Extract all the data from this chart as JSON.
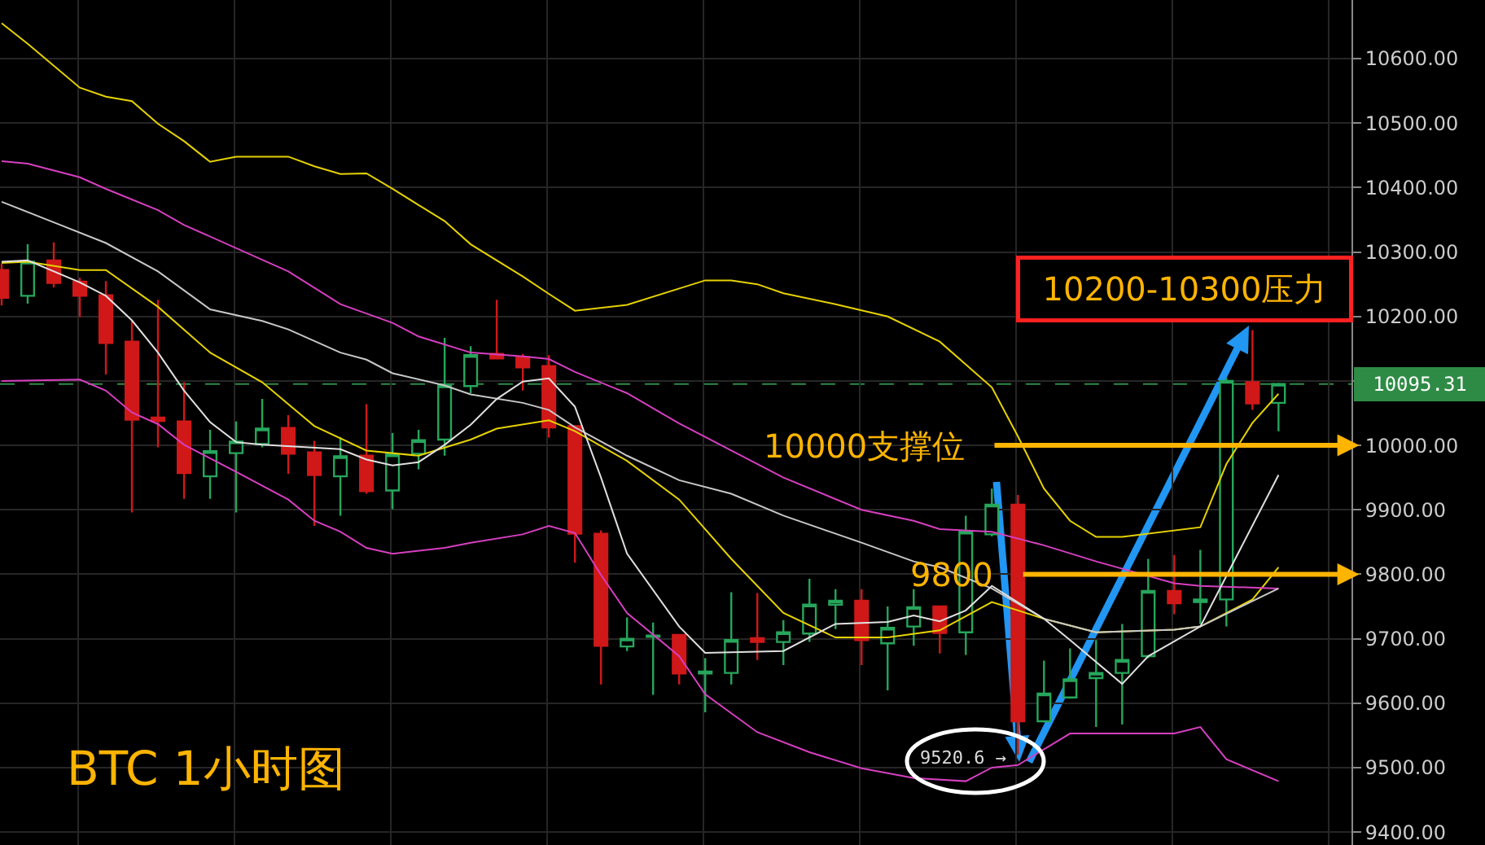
{
  "chart_data": {
    "type": "candlestick",
    "title": "BTC 1小时图",
    "categories": [
      null,
      null,
      null,
      null,
      null,
      null,
      null,
      null,
      null,
      null,
      null,
      null,
      null,
      null,
      null,
      null,
      null,
      null,
      null,
      null,
      null,
      null,
      null,
      null,
      null,
      null,
      null,
      null,
      null,
      null,
      null,
      null,
      null,
      null,
      null,
      null,
      null,
      null,
      null,
      null,
      null,
      null,
      null,
      null,
      null,
      null,
      null,
      null,
      null,
      null
    ],
    "ohlc": [
      [
        10272,
        10282,
        10217,
        10229
      ],
      [
        10232,
        10312,
        10220,
        10285
      ],
      [
        10287,
        10315,
        10245,
        10252
      ],
      [
        10254,
        10260,
        10199,
        10232
      ],
      [
        10233,
        10255,
        10110,
        10159
      ],
      [
        10161,
        10194,
        9896,
        10040
      ],
      [
        10043,
        10226,
        9997,
        10038
      ],
      [
        10037,
        10098,
        9917,
        9957
      ],
      [
        9952,
        10024,
        9917,
        9991
      ],
      [
        9988,
        10037,
        9896,
        10006
      ],
      [
        10002,
        10072,
        9997,
        10026
      ],
      [
        10027,
        10047,
        9956,
        9987
      ],
      [
        9989,
        10007,
        9875,
        9954
      ],
      [
        9952,
        10013,
        9891,
        9983
      ],
      [
        9984,
        10064,
        9925,
        9929
      ],
      [
        9930,
        10019,
        9901,
        9986
      ],
      [
        9987,
        10024,
        9963,
        10008
      ],
      [
        10009,
        10167,
        9984,
        10093
      ],
      [
        10092,
        10154,
        10081,
        10140
      ],
      [
        10142,
        10226,
        10134,
        10135
      ],
      [
        10137,
        10142,
        10085,
        10121
      ],
      [
        10123,
        10140,
        10012,
        10028
      ],
      [
        10030,
        10030,
        9818,
        9863
      ],
      [
        9863,
        9868,
        9629,
        9689
      ],
      [
        9688,
        9733,
        9681,
        9700
      ],
      [
        9703,
        9725,
        9613,
        9705
      ],
      [
        9706,
        9706,
        9629,
        9646
      ],
      [
        9646,
        9670,
        9586,
        9649
      ],
      [
        9647,
        9772,
        9629,
        9698
      ],
      [
        9701,
        9771,
        9667,
        9695
      ],
      [
        9695,
        9729,
        9659,
        9710
      ],
      [
        9708,
        9793,
        9695,
        9753
      ],
      [
        9753,
        9777,
        9715,
        9759
      ],
      [
        9759,
        9777,
        9659,
        9698
      ],
      [
        9693,
        9750,
        9620,
        9717
      ],
      [
        9719,
        9777,
        9689,
        9749
      ],
      [
        9750,
        9750,
        9677,
        9709
      ],
      [
        9710,
        9891,
        9675,
        9866
      ],
      [
        9862,
        9933,
        9859,
        9908
      ],
      [
        9908,
        9923,
        9520.6,
        9572
      ],
      [
        9572,
        9666,
        9570,
        9615
      ],
      [
        9609,
        9685,
        9607,
        9637
      ],
      [
        9639,
        9698,
        9563,
        9647
      ],
      [
        9647,
        9723,
        9567,
        9667
      ],
      [
        9673,
        9824,
        9670,
        9774
      ],
      [
        9774,
        9830,
        9738,
        9755
      ],
      [
        9757,
        9838,
        9723,
        9761
      ],
      [
        9761,
        10105,
        9719,
        10100
      ],
      [
        10098,
        10179,
        10055,
        10065
      ],
      [
        10066,
        10097,
        10022,
        10095.31
      ]
    ],
    "colors": [
      "#d01818",
      "#26a65b",
      "#d01818",
      "#d01818",
      "#d01818",
      "#d01818",
      "#d01818",
      "#d01818",
      "#26a65b",
      "#26a65b",
      "#26a65b",
      "#d01818",
      "#d01818",
      "#26a65b",
      "#d01818",
      "#26a65b",
      "#26a65b",
      "#26a65b",
      "#26a65b",
      "#d01818",
      "#d01818",
      "#d01818",
      "#d01818",
      "#d01818",
      "#26a65b",
      "#26a65b",
      "#d01818",
      "#26a65b",
      "#26a65b",
      "#d01818",
      "#26a65b",
      "#26a65b",
      "#26a65b",
      "#d01818",
      "#26a65b",
      "#26a65b",
      "#d01818",
      "#26a65b",
      "#26a65b",
      "#d01818",
      "#26a65b",
      "#26a65b",
      "#26a65b",
      "#26a65b",
      "#26a65b",
      "#d01818",
      "#26a65b",
      "#26a65b",
      "#d01818",
      "#26a65b"
    ],
    "series": [
      {
        "type": "line",
        "color": "#e6d200",
        "values": [
          10655,
          10623,
          null,
          10555,
          10541,
          10534,
          10499,
          10472,
          10440,
          10448,
          null,
          10448,
          10433,
          10421,
          10422,
          10398,
          10373,
          10348,
          10312,
          null,
          10262,
          10235,
          10209,
          null,
          10218,
          null,
          null,
          10256,
          10256,
          10250,
          10236,
          null,
          10219,
          null,
          10200,
          null,
          10161,
          null,
          10090,
          10014,
          9933,
          9883,
          9858,
          9858,
          null,
          null,
          9873,
          9971,
          10035,
          10080
        ]
      },
      {
        "type": "line",
        "color": "#e6d200",
        "values": [
          10283,
          10285,
          null,
          10272,
          10272,
          null,
          10215,
          null,
          10144,
          null,
          10098,
          null,
          10030,
          null,
          9992,
          null,
          9984,
          null,
          10009,
          10026,
          null,
          10039,
          10022,
          null,
          9976,
          null,
          9916,
          null,
          9824,
          null,
          9740,
          null,
          9702,
          null,
          9702,
          null,
          9713,
          null,
          9757,
          null,
          9731,
          null,
          9710,
          null,
          null,
          9714,
          9719,
          null,
          9761,
          9811
        ]
      },
      {
        "type": "line",
        "color": "#d63fc0",
        "values": [
          10441,
          10437,
          null,
          10416,
          10398,
          null,
          10365,
          10342,
          null,
          null,
          null,
          10270,
          null,
          10219,
          null,
          10190,
          10169,
          null,
          10144,
          null,
          10138,
          10134,
          10114,
          null,
          10081,
          null,
          10034,
          null,
          9992,
          null,
          9950,
          null,
          null,
          9900,
          null,
          9883,
          9870,
          null,
          9866,
          null,
          9845,
          null,
          9820,
          null,
          null,
          9786,
          9782,
          null,
          null,
          9778
        ]
      },
      {
        "type": "line",
        "color": "#d63fc0",
        "values": [
          10100,
          null,
          null,
          10102,
          10085,
          10051,
          10033,
          10001,
          null,
          9959,
          null,
          9916,
          9883,
          9866,
          9841,
          9832,
          null,
          9841,
          9849,
          null,
          9862,
          9875,
          9864,
          9799,
          9740,
          null,
          9673,
          9614,
          null,
          9555,
          null,
          9524,
          null,
          9499,
          null,
          9484,
          null,
          9479,
          9500,
          9504,
          null,
          9553,
          null,
          9553,
          null,
          9553,
          9563,
          9513,
          null,
          9479
        ]
      },
      {
        "type": "line",
        "color": "#c8c8c8",
        "values": [
          10378,
          null,
          10346,
          null,
          10314,
          null,
          10270,
          null,
          10211,
          null,
          10193,
          10180,
          null,
          10144,
          10133,
          10112,
          null,
          10093,
          10079,
          null,
          10066,
          10055,
          10028,
          null,
          9984,
          null,
          9946,
          null,
          9925,
          null,
          9891,
          null,
          null,
          9849,
          null,
          9820,
          9811,
          null,
          9778,
          null,
          9731,
          null,
          9710,
          null,
          null,
          9714,
          9719,
          null,
          null,
          9778
        ]
      },
      {
        "type": "line",
        "color": "#e0e0e0",
        "values": [
          10285,
          10287,
          null,
          10253,
          10232,
          10194,
          10144,
          10085,
          10036,
          10005,
          10001,
          null,
          null,
          9994,
          9978,
          9969,
          9974,
          10001,
          10032,
          10072,
          10099,
          10104,
          10060,
          9950,
          9832,
          null,
          9719,
          9678,
          null,
          null,
          9681,
          null,
          9723,
          null,
          9726,
          9736,
          9727,
          9744,
          9782,
          null,
          9731,
          9698,
          null,
          9630,
          9673,
          null,
          9719,
          null,
          null,
          9954
        ]
      }
    ],
    "ylim": [
      9380,
      10691
    ],
    "yticks": [
      {
        "value": 9400,
        "label": "9400.00"
      },
      {
        "value": 9500,
        "label": "9500.00"
      },
      {
        "value": 9600,
        "label": "9600.00"
      },
      {
        "value": 9700,
        "label": "9700.00"
      },
      {
        "value": 9800,
        "label": "9800.00"
      },
      {
        "value": 9900,
        "label": "9900.00"
      },
      {
        "value": 10000,
        "label": "10000.00"
      },
      {
        "value": 10100,
        "label": null
      },
      {
        "value": 10200,
        "label": "10200.00"
      },
      {
        "value": 10300,
        "label": "10300.00"
      },
      {
        "value": 10400,
        "label": "10400.00"
      },
      {
        "value": 10500,
        "label": "10500.00"
      },
      {
        "value": 10600,
        "label": "10600.00"
      }
    ],
    "grid": true,
    "ref_lines": [
      {
        "axis": "y",
        "value": 10095.31,
        "label": "10095.31",
        "color": "#2e8b45",
        "line_style": "dashed"
      },
      {
        "axis": "y",
        "value": 10000,
        "label": "10000支撑位",
        "color": "#ffb400"
      },
      {
        "axis": "y",
        "value": 9800,
        "label": "9800",
        "color": "#ffb400"
      }
    ],
    "annotations": [
      "10200-10300压力",
      "9520.6 →"
    ]
  }
}
